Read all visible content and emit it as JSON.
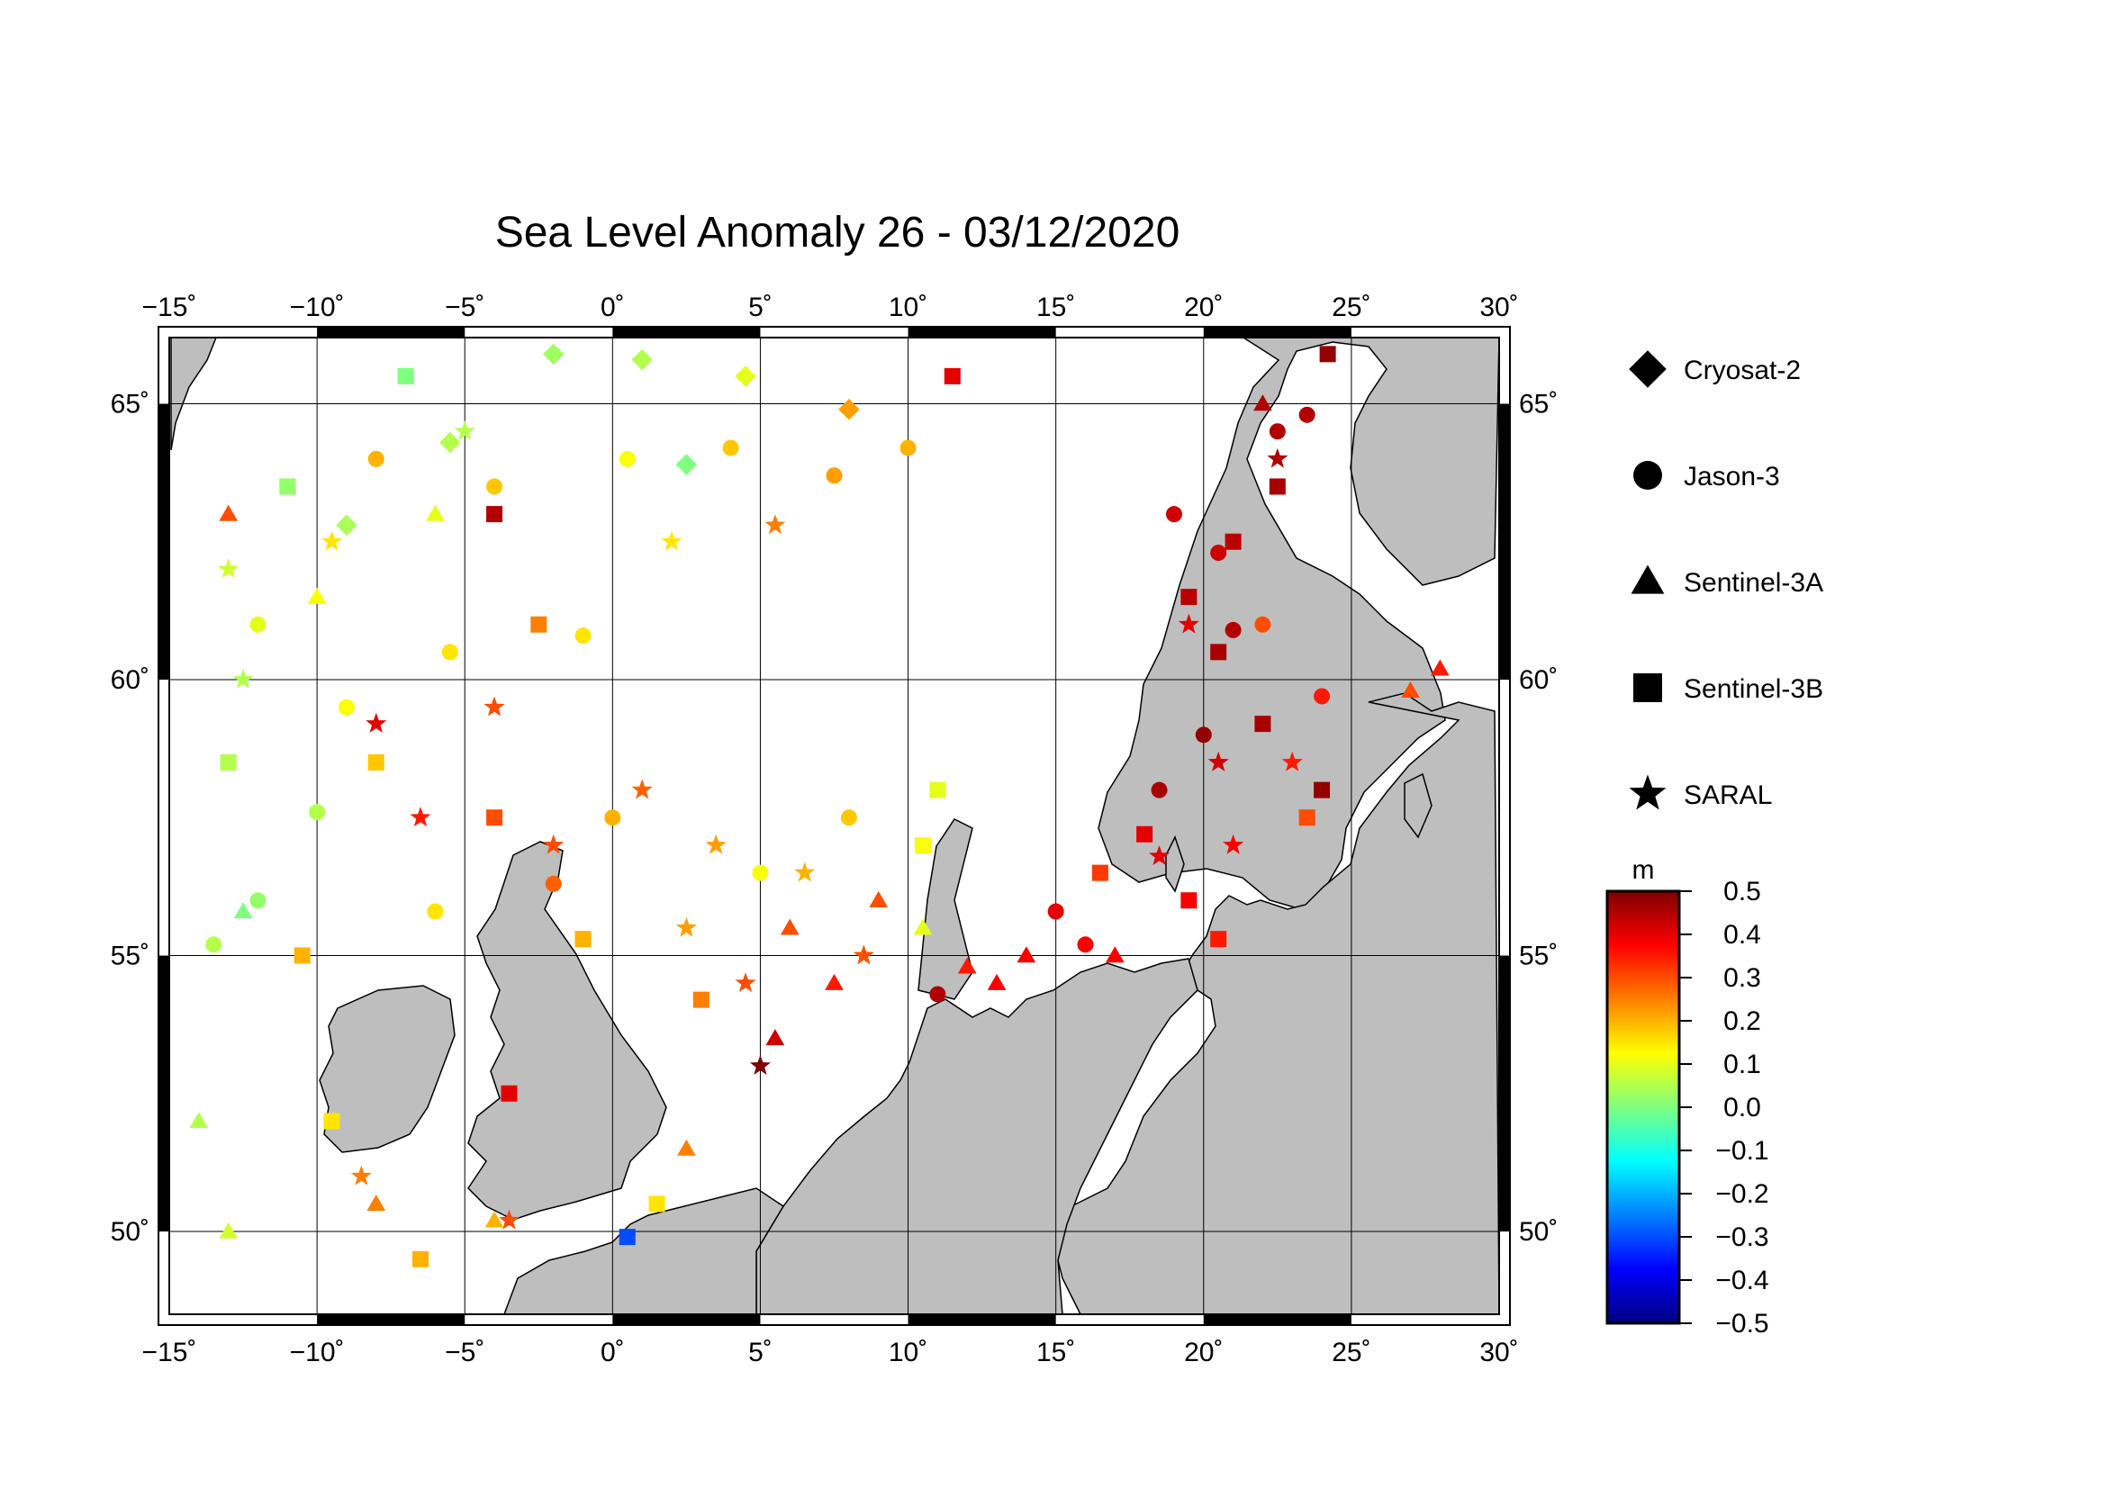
{
  "title": "Sea Level Anomaly 26 - 03/12/2020",
  "colors": {
    "land": "#bebebe",
    "sea": "#ffffff",
    "frame": "#000000"
  },
  "axes": {
    "lon_ticks": [
      -15,
      -10,
      -5,
      0,
      5,
      10,
      15,
      20,
      25,
      30
    ],
    "lat_ticks": [
      50,
      55,
      60,
      65
    ],
    "lon_labels": [
      "−15˚",
      "−10˚",
      "−5˚",
      "0˚",
      "5˚",
      "10˚",
      "15˚",
      "20˚",
      "25˚",
      "30˚"
    ],
    "lat_labels": [
      "50˚",
      "55˚",
      "60˚",
      "65˚"
    ],
    "lon_range": [
      -15,
      30
    ],
    "lat_range": [
      48.5,
      66.2
    ]
  },
  "legend": {
    "items": [
      {
        "name": "Cryosat-2",
        "symbol": "diamond"
      },
      {
        "name": "Jason-3",
        "symbol": "circle"
      },
      {
        "name": "Sentinel-3A",
        "symbol": "triangle"
      },
      {
        "name": "Sentinel-3B",
        "symbol": "square"
      },
      {
        "name": "SARAL",
        "symbol": "star"
      }
    ]
  },
  "colorbar": {
    "unit": "m",
    "min": -0.5,
    "max": 0.5,
    "tick_labels": [
      "0.5",
      "0.4",
      "0.3",
      "0.2",
      "0.1",
      "0.0",
      "−0.1",
      "−0.2",
      "−0.3",
      "−0.4",
      "−0.5"
    ],
    "stops": [
      "#00007f",
      "#0000ff",
      "#007fff",
      "#00ffff",
      "#7fff7f",
      "#ffff00",
      "#ff7f00",
      "#ff0000",
      "#7f0000"
    ]
  },
  "chart_data": {
    "type": "scatter",
    "title": "Sea Level Anomaly 26 - 03/12/2020",
    "xlabel": "",
    "ylabel": "",
    "xlim": [
      -15,
      30
    ],
    "ylim": [
      48.5,
      66.2
    ],
    "series": [
      {
        "name": "Cryosat-2",
        "points": [
          [
            1.0,
            65.8,
            0.05
          ],
          [
            4.5,
            65.5,
            0.1
          ],
          [
            8.0,
            64.9,
            0.22
          ],
          [
            -2.0,
            65.9,
            0.03
          ],
          [
            2.5,
            63.9,
            0.0
          ],
          [
            -5.5,
            64.3,
            0.05
          ],
          [
            -9.0,
            62.8,
            0.04
          ]
        ]
      },
      {
        "name": "Jason-3",
        "points": [
          [
            22.5,
            64.5,
            0.45
          ],
          [
            23.5,
            64.8,
            0.45
          ],
          [
            19.0,
            63.0,
            0.42
          ],
          [
            20.5,
            62.3,
            0.42
          ],
          [
            21.0,
            60.9,
            0.45
          ],
          [
            20.0,
            59.0,
            0.48
          ],
          [
            18.5,
            58.0,
            0.46
          ],
          [
            15.0,
            55.8,
            0.4
          ],
          [
            16.0,
            55.2,
            0.38
          ],
          [
            8.0,
            57.5,
            0.18
          ],
          [
            5.0,
            56.5,
            0.12
          ],
          [
            0.0,
            57.5,
            0.2
          ],
          [
            -2.0,
            56.3,
            0.28
          ],
          [
            -6.0,
            55.8,
            0.15
          ],
          [
            -10.0,
            57.6,
            0.05
          ],
          [
            -12.0,
            56.0,
            0.02
          ],
          [
            -13.5,
            55.2,
            0.05
          ],
          [
            -8.0,
            64.0,
            0.2
          ],
          [
            -4.0,
            63.5,
            0.18
          ],
          [
            0.5,
            64.0,
            0.12
          ],
          [
            4.0,
            64.2,
            0.18
          ],
          [
            7.5,
            63.7,
            0.22
          ],
          [
            10.0,
            64.2,
            0.2
          ],
          [
            -12.0,
            61.0,
            0.1
          ],
          [
            -9.0,
            59.5,
            0.12
          ],
          [
            -5.5,
            60.5,
            0.15
          ],
          [
            -1.0,
            60.8,
            0.15
          ],
          [
            11.0,
            54.3,
            0.45
          ],
          [
            22.0,
            61.0,
            0.3
          ],
          [
            24.0,
            59.7,
            0.35
          ]
        ]
      },
      {
        "name": "Sentinel-3A",
        "points": [
          [
            28.0,
            60.2,
            0.35
          ],
          [
            27.0,
            59.8,
            0.3
          ],
          [
            6.0,
            55.5,
            0.3
          ],
          [
            7.5,
            54.5,
            0.35
          ],
          [
            9.0,
            56.0,
            0.3
          ],
          [
            13.0,
            54.5,
            0.38
          ],
          [
            14.0,
            55.0,
            0.38
          ],
          [
            5.5,
            53.5,
            0.42
          ],
          [
            -13.0,
            63.0,
            0.3
          ],
          [
            -12.5,
            55.8,
            0.0
          ],
          [
            -14.0,
            52.0,
            0.05
          ],
          [
            -13.0,
            50.0,
            0.08
          ],
          [
            -8.0,
            50.5,
            0.25
          ],
          [
            -4.0,
            50.2,
            0.2
          ],
          [
            2.5,
            51.5,
            0.25
          ],
          [
            12.0,
            54.8,
            0.35
          ],
          [
            10.5,
            55.5,
            0.1
          ],
          [
            17.0,
            55.0,
            0.38
          ],
          [
            22.0,
            65.0,
            0.45
          ],
          [
            -10.0,
            61.5,
            0.12
          ],
          [
            -6.0,
            63.0,
            0.1
          ]
        ]
      },
      {
        "name": "Sentinel-3B",
        "points": [
          [
            24.2,
            65.9,
            0.48
          ],
          [
            22.5,
            63.5,
            0.46
          ],
          [
            21.0,
            62.5,
            0.44
          ],
          [
            19.5,
            61.5,
            0.44
          ],
          [
            20.5,
            60.5,
            0.46
          ],
          [
            22.0,
            59.2,
            0.46
          ],
          [
            24.0,
            58.0,
            0.48
          ],
          [
            18.0,
            57.2,
            0.4
          ],
          [
            19.5,
            56.0,
            0.38
          ],
          [
            20.5,
            55.3,
            0.35
          ],
          [
            16.5,
            56.5,
            0.32
          ],
          [
            11.5,
            65.5,
            0.4
          ],
          [
            -4.0,
            63.0,
            0.45
          ],
          [
            -2.5,
            61.0,
            0.25
          ],
          [
            -8.0,
            58.5,
            0.18
          ],
          [
            -10.5,
            55.0,
            0.2
          ],
          [
            -9.5,
            52.0,
            0.15
          ],
          [
            -6.5,
            49.5,
            0.2
          ],
          [
            -3.5,
            52.5,
            0.4
          ],
          [
            1.5,
            50.5,
            0.15
          ],
          [
            0.5,
            49.9,
            -0.3
          ],
          [
            3.0,
            54.2,
            0.25
          ],
          [
            -1.0,
            55.3,
            0.2
          ],
          [
            -4.0,
            57.5,
            0.3
          ],
          [
            -13.0,
            58.5,
            0.05
          ],
          [
            -11.0,
            63.5,
            0.02
          ],
          [
            -7.0,
            65.5,
            0.0
          ],
          [
            11.0,
            58.0,
            0.1
          ],
          [
            10.5,
            57.0,
            0.12
          ],
          [
            23.5,
            57.5,
            0.3
          ]
        ]
      },
      {
        "name": "SARAL",
        "points": [
          [
            22.5,
            64.0,
            0.45
          ],
          [
            19.5,
            61.0,
            0.4
          ],
          [
            20.5,
            58.5,
            0.42
          ],
          [
            21.0,
            57.0,
            0.38
          ],
          [
            18.5,
            56.8,
            0.4
          ],
          [
            -8.0,
            59.2,
            0.4
          ],
          [
            -2.0,
            57.0,
            0.3
          ],
          [
            1.0,
            58.0,
            0.28
          ],
          [
            3.5,
            57.0,
            0.22
          ],
          [
            5.0,
            53.0,
            0.5
          ],
          [
            4.5,
            54.5,
            0.3
          ],
          [
            6.5,
            56.5,
            0.2
          ],
          [
            8.5,
            55.0,
            0.3
          ],
          [
            -4.0,
            59.5,
            0.3
          ],
          [
            -6.5,
            57.5,
            0.35
          ],
          [
            -12.5,
            60.0,
            0.05
          ],
          [
            -13.0,
            62.0,
            0.08
          ],
          [
            -9.5,
            62.5,
            0.15
          ],
          [
            -5.0,
            64.5,
            0.05
          ],
          [
            2.0,
            62.5,
            0.15
          ],
          [
            5.5,
            62.8,
            0.25
          ],
          [
            -3.5,
            50.2,
            0.3
          ],
          [
            -8.5,
            51.0,
            0.25
          ],
          [
            2.5,
            55.5,
            0.22
          ],
          [
            23.0,
            58.5,
            0.35
          ]
        ]
      }
    ]
  }
}
